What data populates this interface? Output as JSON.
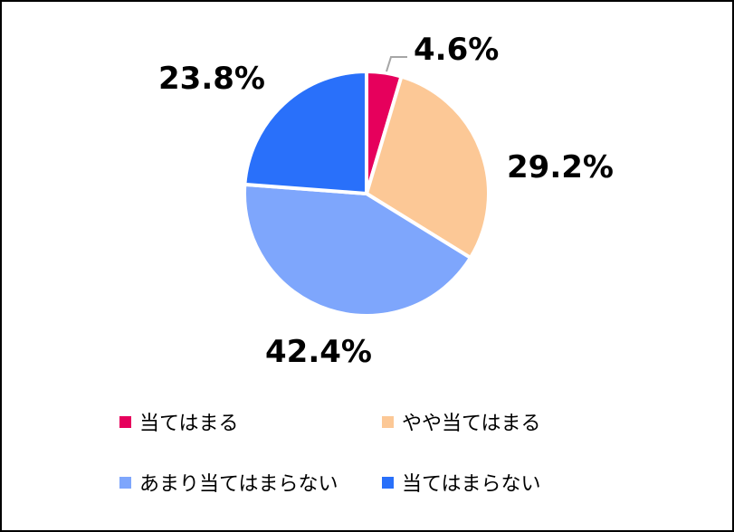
{
  "chart_data": {
    "type": "pie",
    "start_angle_deg": 0,
    "direction": "clockwise",
    "slices": [
      {
        "label": "当てはまる",
        "value": 4.6,
        "value_label": "4.6%",
        "color": "#e6005c"
      },
      {
        "label": "やや当てはまる",
        "value": 29.2,
        "value_label": "29.2%",
        "color": "#fcc896"
      },
      {
        "label": "あまり当てはまらない",
        "value": 42.4,
        "value_label": "42.4%",
        "color": "#7ea6fc"
      },
      {
        "label": "当てはまらない",
        "value": 23.8,
        "value_label": "23.8%",
        "color": "#2970fa"
      }
    ],
    "legend_position": "bottom",
    "leader_line_color": "#a6a6a6"
  }
}
